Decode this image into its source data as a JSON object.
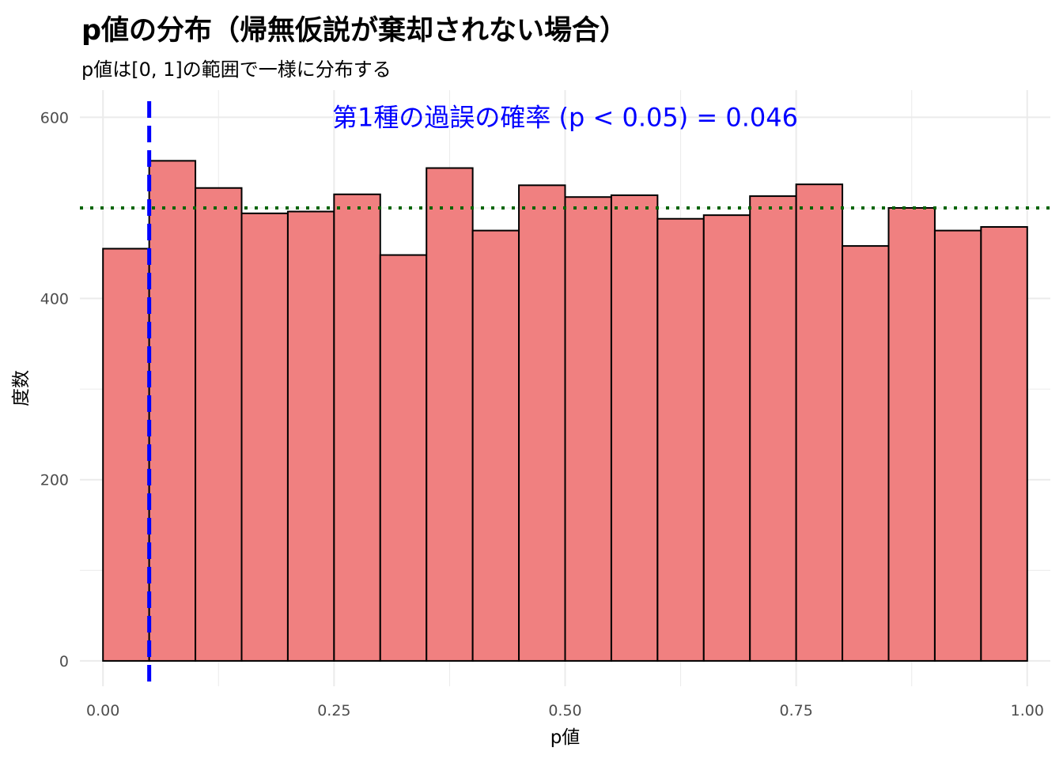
{
  "title": "p値の分布（帰無仮説が棄却されない場合）",
  "subtitle": "p値は[0, 1]の範囲で一様に分布する",
  "colors": {
    "bar_fill": "#F08080",
    "bar_stroke": "#000000",
    "alpha_line": "#0000FF",
    "expected_line": "#006400",
    "annotation": "#0000FF",
    "grid": "#EBEBEB"
  },
  "chart_data": {
    "type": "bar",
    "chart_kind": "histogram",
    "xlabel": "p値",
    "ylabel": "度数",
    "bin_width": 0.05,
    "bin_starts": [
      0.0,
      0.05,
      0.1,
      0.15,
      0.2,
      0.25,
      0.3,
      0.35,
      0.4,
      0.45,
      0.5,
      0.55,
      0.6,
      0.65,
      0.7,
      0.75,
      0.8,
      0.85,
      0.9,
      0.95
    ],
    "values": [
      455,
      552,
      522,
      494,
      496,
      515,
      448,
      544,
      475,
      525,
      512,
      514,
      488,
      492,
      513,
      526,
      458,
      500,
      475,
      479
    ],
    "xlim": [
      -0.025,
      1.025
    ],
    "ylim": [
      -28,
      630
    ],
    "x_ticks": [
      0.0,
      0.25,
      0.5,
      0.75,
      1.0
    ],
    "x_tick_labels": [
      "0.00",
      "0.25",
      "0.50",
      "0.75",
      "1.00"
    ],
    "y_ticks": [
      0,
      200,
      400,
      600
    ],
    "y_tick_labels": [
      "0",
      "200",
      "400",
      "600"
    ],
    "grid": true,
    "legend": "none",
    "reference_lines": [
      {
        "orientation": "vertical",
        "x": 0.05,
        "style": "dashed",
        "color": "#0000FF"
      },
      {
        "orientation": "horizontal",
        "y": 500,
        "style": "dotted",
        "color": "#006400"
      }
    ],
    "annotation": {
      "text": "第1種の過誤の確率 (p < 0.05) = 0.046",
      "x": 0.5,
      "y": 600
    }
  }
}
